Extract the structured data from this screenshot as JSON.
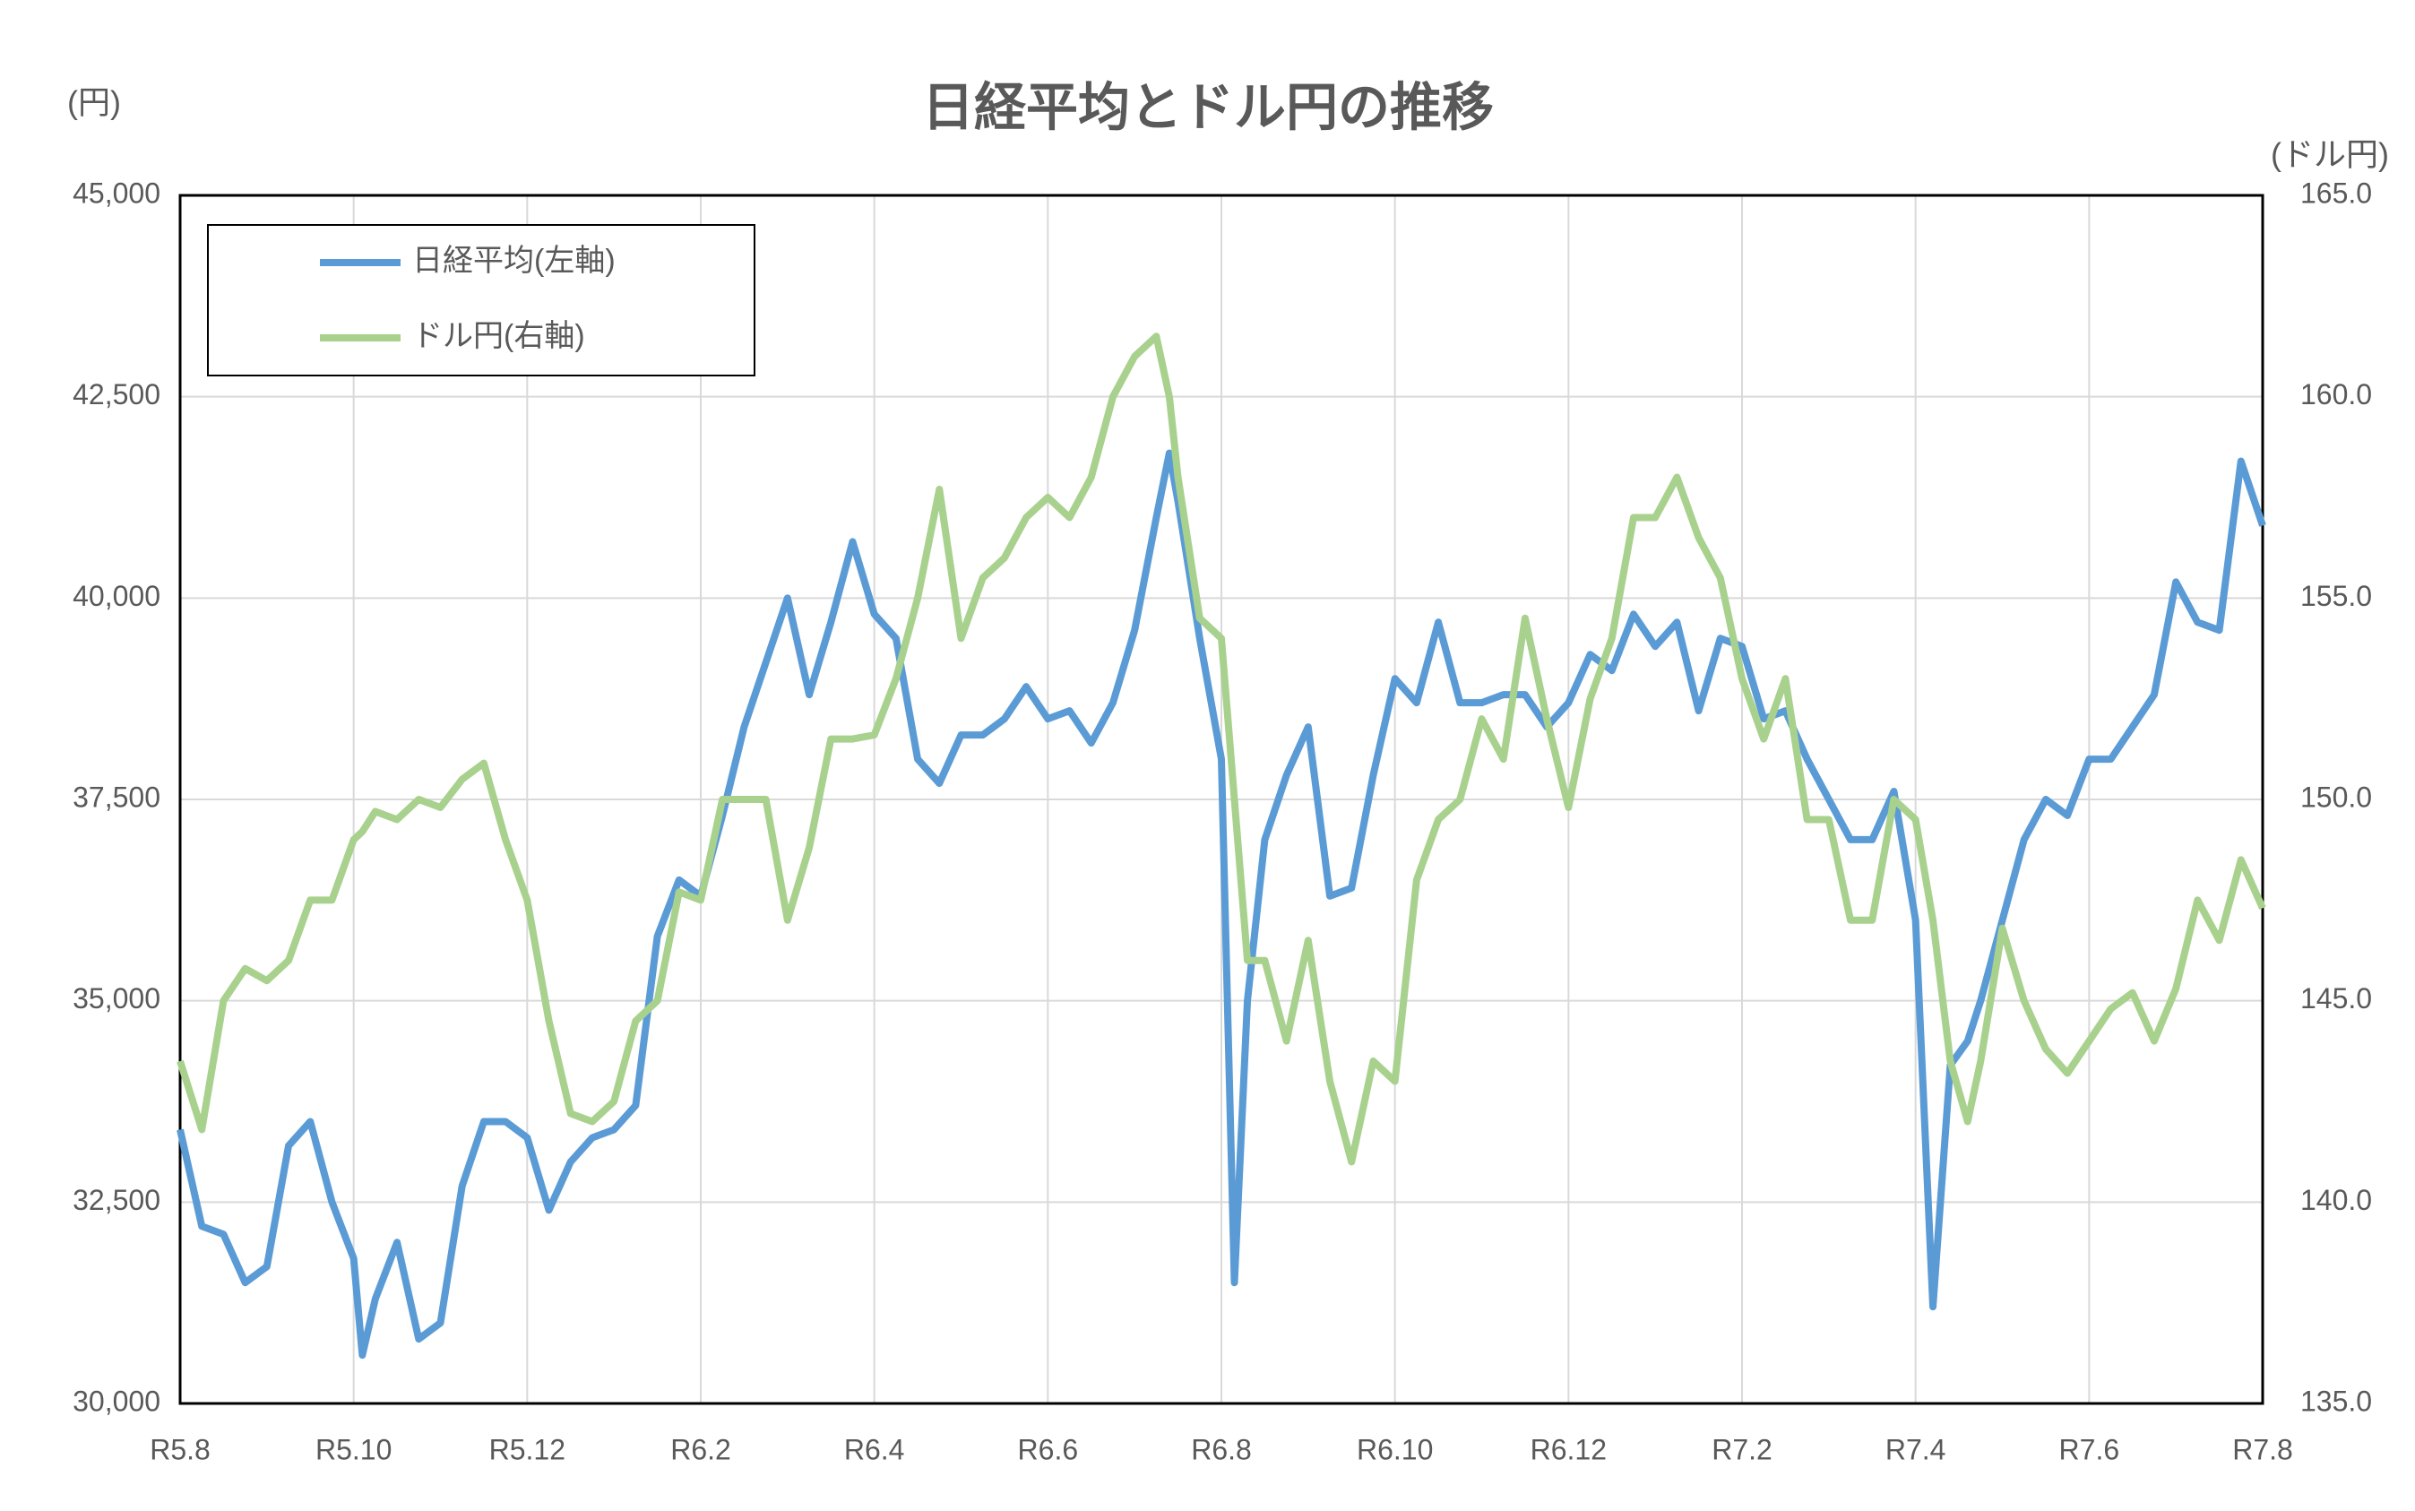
{
  "chart_data": {
    "type": "line",
    "title": "日経平均とドル円の推移",
    "y_label": "(円)",
    "y2_label": "(ドル円)",
    "x": [
      0,
      0.25,
      0.5,
      0.75,
      1,
      1.25,
      1.5,
      1.75,
      2,
      2.1,
      2.25,
      2.5,
      2.75,
      3,
      3.25,
      3.5,
      3.75,
      4,
      4.25,
      4.5,
      4.75,
      5,
      5.25,
      5.5,
      5.75,
      6,
      6.25,
      6.5,
      6.75,
      7,
      7.25,
      7.5,
      7.75,
      8,
      8.25,
      8.5,
      8.75,
      9,
      9.25,
      9.5,
      9.75,
      10,
      10.25,
      10.5,
      10.75,
      11,
      11.25,
      11.4,
      11.5,
      11.75,
      12,
      12.15,
      12.3,
      12.5,
      12.75,
      13,
      13.25,
      13.5,
      13.75,
      14,
      14.25,
      14.5,
      14.75,
      15,
      15.25,
      15.5,
      15.75,
      16,
      16.25,
      16.5,
      16.75,
      17,
      17.25,
      17.5,
      17.75,
      18,
      18.25,
      18.5,
      18.75,
      19,
      19.25,
      19.5,
      19.75,
      20,
      20.2,
      20.4,
      20.6,
      20.75,
      21,
      21.25,
      21.5,
      21.75,
      22,
      22.25,
      22.5,
      22.75,
      23,
      23.25,
      23.5,
      23.75,
      24
    ],
    "xlim": [
      0,
      24
    ],
    "xticks": [
      {
        "value": 0,
        "label": "R5.8"
      },
      {
        "value": 2,
        "label": "R5.10"
      },
      {
        "value": 4,
        "label": "R5.12"
      },
      {
        "value": 6,
        "label": "R6.2"
      },
      {
        "value": 8,
        "label": "R6.4"
      },
      {
        "value": 10,
        "label": "R6.6"
      },
      {
        "value": 12,
        "label": "R6.8"
      },
      {
        "value": 14,
        "label": "R6.10"
      },
      {
        "value": 16,
        "label": "R6.12"
      },
      {
        "value": 18,
        "label": "R7.2"
      },
      {
        "value": 20,
        "label": "R7.4"
      },
      {
        "value": 22,
        "label": "R7.6"
      },
      {
        "value": 24,
        "label": "R7.8"
      }
    ],
    "ylim": [
      30000,
      45000
    ],
    "yticks": [
      {
        "value": 30000,
        "label": "30,000"
      },
      {
        "value": 32500,
        "label": "32,500"
      },
      {
        "value": 35000,
        "label": "35,000"
      },
      {
        "value": 37500,
        "label": "37,500"
      },
      {
        "value": 40000,
        "label": "40,000"
      },
      {
        "value": 42500,
        "label": "42,500"
      },
      {
        "value": 45000,
        "label": "45,000"
      }
    ],
    "y2lim": [
      135,
      165
    ],
    "y2ticks": [
      {
        "value": 135,
        "label": "135.0"
      },
      {
        "value": 140,
        "label": "140.0"
      },
      {
        "value": 145,
        "label": "145.0"
      },
      {
        "value": 150,
        "label": "150.0"
      },
      {
        "value": 155,
        "label": "155.0"
      },
      {
        "value": 160,
        "label": "160.0"
      },
      {
        "value": 165,
        "label": "165.0"
      }
    ],
    "grid": true,
    "legend": "upper left",
    "series": [
      {
        "name": "日経平均(左軸)",
        "color": "#5b9bd5",
        "values": [
          33400,
          32200,
          32100,
          31500,
          31700,
          33200,
          33500,
          32500,
          31800,
          30600,
          31300,
          32000,
          30800,
          31000,
          32700,
          33500,
          33500,
          33300,
          32400,
          33000,
          33300,
          33400,
          33700,
          35800,
          36500,
          36300,
          37300,
          38400,
          39200,
          40000,
          38800,
          39700,
          40700,
          39800,
          39500,
          38000,
          37700,
          38300,
          38300,
          38500,
          38900,
          38500,
          38600,
          38200,
          38700,
          39600,
          41000,
          41800,
          41200,
          39500,
          38000,
          31500,
          35000,
          37000,
          37800,
          38400,
          36300,
          36400,
          37800,
          39000,
          38700,
          39700,
          38700,
          38700,
          38800,
          38800,
          38400,
          38700,
          39300,
          39100,
          39800,
          39400,
          39700,
          38600,
          39500,
          39400,
          38500,
          38600,
          38000,
          37500,
          37000,
          37000,
          37600,
          36000,
          31200,
          34200,
          34500,
          35000,
          36000,
          37000,
          37500,
          37300,
          38000,
          38000,
          38400,
          38800,
          40200,
          39700,
          39600,
          41700,
          40900
        ]
      },
      {
        "name": "ドル円(右軸)",
        "color": "#a9d18e",
        "axis": "y2",
        "values": [
          143.5,
          141.8,
          145.0,
          145.8,
          145.5,
          146.0,
          147.5,
          147.5,
          149.0,
          149.2,
          149.7,
          149.5,
          150.0,
          149.8,
          150.5,
          150.9,
          149.0,
          147.5,
          144.5,
          142.2,
          142.0,
          142.5,
          144.5,
          145.0,
          147.7,
          147.5,
          150.0,
          150.0,
          150.0,
          147.0,
          148.8,
          151.5,
          151.5,
          151.6,
          153.0,
          155.0,
          157.7,
          154.0,
          155.5,
          156.0,
          157.0,
          157.5,
          157.0,
          158.0,
          160.0,
          161.0,
          161.5,
          160.0,
          158.0,
          154.5,
          154.0,
          150.0,
          146.0,
          146.0,
          144.0,
          146.5,
          143.0,
          141.0,
          143.5,
          143.0,
          148.0,
          149.5,
          150.0,
          152.0,
          151.0,
          154.5,
          152.0,
          149.8,
          152.5,
          154.0,
          157.0,
          157.0,
          158.0,
          156.5,
          155.5,
          153.0,
          151.5,
          153.0,
          149.5,
          149.5,
          147.0,
          147.0,
          150.0,
          149.5,
          147.0,
          143.5,
          142.0,
          143.5,
          146.8,
          145.0,
          143.8,
          143.2,
          144.0,
          144.8,
          145.2,
          144.0,
          145.3,
          147.5,
          146.5,
          148.5,
          147.3
        ]
      }
    ]
  }
}
